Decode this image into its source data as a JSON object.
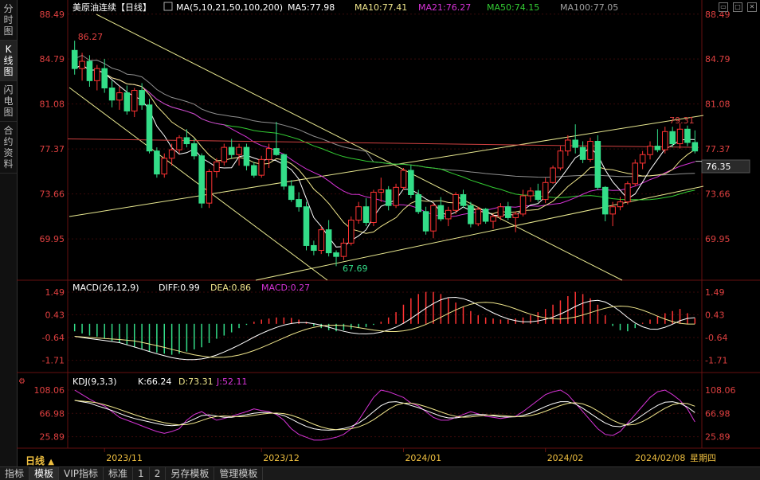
{
  "sidebar": {
    "tabs": [
      {
        "label": "分时图",
        "active": false
      },
      {
        "label": "K线图",
        "active": true
      },
      {
        "label": "闪电图",
        "active": false
      },
      {
        "label": "合约资料",
        "active": false
      }
    ]
  },
  "header": {
    "title": "美原油连续【日线】",
    "ma_params": "MA(5,10,21,50,100,200)",
    "ma_values": [
      {
        "label": "MA5:77.98",
        "color": "#ffffff"
      },
      {
        "label": "MA10:77.41",
        "color": "#f0e68c"
      },
      {
        "label": "MA21:76.27",
        "color": "#d633d6"
      },
      {
        "label": "MA50:74.15",
        "color": "#33cc33"
      },
      {
        "label": "MA100:77.05",
        "color": "#a0a0a0"
      }
    ]
  },
  "price_axis": {
    "ticks": [
      "88.49",
      "84.79",
      "81.08",
      "77.37",
      "73.66",
      "69.95"
    ],
    "current_price": "76.35"
  },
  "annotations": {
    "high_left": "86.27",
    "high_right": "79.31",
    "low": "67.69"
  },
  "macd": {
    "title": "MACD(26,12,9)",
    "diff": "DIFF:0.99",
    "dea": "DEA:0.86",
    "macd": "MACD:0.27",
    "ticks": [
      "1.49",
      "0.43",
      "-0.64",
      "-1.71"
    ]
  },
  "kdj": {
    "title": "KDJ(9,3,3)",
    "k": "K:66.24",
    "d": "D:73.31",
    "j": "J:52.11",
    "ticks": [
      "108.06",
      "66.98",
      "25.89"
    ]
  },
  "x_axis": {
    "labels": [
      "2023/11",
      "2023/12",
      "2024/01",
      "2024/02"
    ],
    "cursor_date": "2024/02/08",
    "cursor_weekday": "星期四"
  },
  "period_label": "日线",
  "bottom_tabs": [
    {
      "label": "指标",
      "selected": false
    },
    {
      "label": "模板",
      "selected": true
    },
    {
      "label": "VIP指标",
      "selected": false
    },
    {
      "label": "标准",
      "selected": false
    },
    {
      "label": "1",
      "selected": false
    },
    {
      "label": "2",
      "selected": false
    },
    {
      "label": "另存模板",
      "selected": false
    },
    {
      "label": "管理模板",
      "selected": false
    }
  ],
  "colors": {
    "up": "#ff3333",
    "down": "#33dd88",
    "grid": "#551111"
  },
  "chart_data": {
    "type": "candlestick",
    "title": "美原油连续【日线】",
    "ylim": [
      67.0,
      89.0
    ],
    "candles": [
      [
        85.5,
        86.3,
        83.5,
        84.0
      ],
      [
        84.0,
        85.3,
        83.0,
        84.6
      ],
      [
        84.6,
        85.1,
        82.5,
        83.0
      ],
      [
        83.0,
        84.3,
        82.2,
        84.0
      ],
      [
        84.0,
        84.8,
        82.0,
        82.4
      ],
      [
        82.4,
        83.0,
        80.8,
        81.4
      ],
      [
        81.4,
        82.5,
        80.6,
        82.0
      ],
      [
        82.0,
        82.6,
        80.2,
        80.5
      ],
      [
        80.5,
        82.4,
        80.0,
        82.2
      ],
      [
        82.2,
        82.8,
        80.6,
        81.0
      ],
      [
        81.0,
        81.5,
        77.0,
        77.2
      ],
      [
        77.2,
        77.5,
        75.0,
        75.3
      ],
      [
        75.3,
        77.0,
        75.0,
        76.6
      ],
      [
        76.6,
        77.8,
        76.0,
        77.3
      ],
      [
        77.3,
        78.5,
        77.0,
        78.3
      ],
      [
        78.3,
        79.0,
        77.5,
        77.8
      ],
      [
        77.8,
        78.2,
        76.5,
        76.8
      ],
      [
        76.8,
        77.0,
        72.5,
        72.9
      ],
      [
        72.9,
        75.7,
        72.5,
        75.5
      ],
      [
        75.5,
        76.6,
        75.0,
        76.3
      ],
      [
        76.3,
        77.8,
        76.0,
        77.5
      ],
      [
        77.5,
        78.2,
        76.6,
        76.9
      ],
      [
        76.9,
        77.8,
        76.0,
        77.5
      ],
      [
        77.5,
        77.8,
        75.6,
        76.0
      ],
      [
        76.0,
        76.3,
        75.0,
        75.2
      ],
      [
        75.2,
        76.8,
        75.0,
        76.5
      ],
      [
        76.5,
        77.8,
        75.8,
        77.4
      ],
      [
        77.4,
        79.6,
        76.8,
        76.9
      ],
      [
        76.9,
        77.0,
        74.0,
        74.3
      ],
      [
        74.3,
        74.8,
        73.0,
        73.2
      ],
      [
        73.2,
        73.8,
        72.2,
        72.6
      ],
      [
        72.6,
        73.0,
        69.0,
        69.4
      ],
      [
        69.4,
        69.8,
        68.6,
        69.0
      ],
      [
        69.0,
        71.0,
        68.7,
        70.7
      ],
      [
        70.7,
        71.5,
        68.5,
        68.8
      ],
      [
        68.8,
        69.0,
        67.7,
        68.5
      ],
      [
        68.5,
        70.0,
        68.2,
        69.6
      ],
      [
        69.6,
        71.8,
        69.4,
        71.5
      ],
      [
        71.5,
        73.0,
        71.2,
        72.6
      ],
      [
        72.6,
        73.3,
        71.0,
        71.3
      ],
      [
        71.3,
        74.0,
        71.0,
        73.8
      ],
      [
        73.8,
        75.0,
        73.0,
        74.0
      ],
      [
        74.0,
        74.3,
        72.3,
        72.7
      ],
      [
        72.7,
        74.5,
        72.5,
        74.2
      ],
      [
        74.2,
        75.8,
        74.0,
        75.6
      ],
      [
        75.6,
        76.0,
        73.3,
        73.6
      ],
      [
        73.6,
        74.0,
        72.0,
        72.2
      ],
      [
        72.2,
        72.6,
        70.3,
        70.6
      ],
      [
        70.6,
        72.9,
        70.0,
        72.7
      ],
      [
        72.7,
        73.4,
        71.4,
        71.6
      ],
      [
        71.6,
        72.6,
        71.0,
        72.3
      ],
      [
        72.3,
        73.8,
        72.0,
        73.6
      ],
      [
        73.6,
        74.0,
        72.5,
        72.7
      ],
      [
        72.7,
        73.0,
        70.9,
        71.2
      ],
      [
        71.2,
        72.6,
        71.0,
        72.4
      ],
      [
        72.4,
        72.5,
        71.2,
        71.4
      ],
      [
        71.4,
        72.0,
        70.8,
        71.8
      ],
      [
        71.8,
        72.9,
        71.5,
        72.6
      ],
      [
        72.6,
        73.0,
        71.5,
        71.7
      ],
      [
        71.7,
        72.2,
        70.5,
        72.0
      ],
      [
        72.0,
        74.0,
        71.8,
        73.5
      ],
      [
        73.5,
        74.2,
        73.0,
        73.9
      ],
      [
        73.9,
        74.5,
        73.0,
        73.2
      ],
      [
        73.2,
        75.0,
        72.9,
        74.6
      ],
      [
        74.6,
        76.0,
        74.5,
        75.8
      ],
      [
        75.8,
        77.6,
        75.6,
        77.2
      ],
      [
        77.2,
        78.5,
        76.8,
        78.1
      ],
      [
        78.1,
        79.4,
        77.0,
        77.5
      ],
      [
        77.5,
        78.0,
        76.2,
        76.5
      ],
      [
        76.5,
        78.3,
        76.3,
        78.0
      ],
      [
        78.0,
        78.5,
        74.0,
        74.2
      ],
      [
        74.2,
        74.3,
        71.4,
        72.0
      ],
      [
        72.0,
        73.0,
        71.0,
        72.6
      ],
      [
        72.6,
        73.4,
        72.3,
        73.0
      ],
      [
        73.0,
        74.7,
        72.8,
        74.5
      ],
      [
        74.5,
        76.5,
        74.3,
        76.2
      ],
      [
        76.2,
        77.2,
        75.7,
        76.9
      ],
      [
        76.9,
        78.0,
        76.5,
        77.6
      ],
      [
        77.6,
        79.0,
        77.1,
        77.3
      ],
      [
        77.3,
        79.2,
        77.0,
        78.8
      ],
      [
        78.8,
        79.2,
        77.5,
        77.8
      ],
      [
        77.8,
        79.5,
        77.4,
        79.0
      ],
      [
        79.0,
        79.3,
        77.6,
        77.9
      ],
      [
        77.9,
        78.9,
        77.0,
        77.2
      ]
    ],
    "macd_histogram": [
      -0.35,
      -0.45,
      -0.55,
      -0.6,
      -0.7,
      -0.8,
      -0.9,
      -1.0,
      -1.1,
      -1.2,
      -1.3,
      -1.35,
      -1.4,
      -1.45,
      -1.4,
      -1.3,
      -1.2,
      -1.1,
      -0.9,
      -0.7,
      -0.55,
      -0.4,
      -0.2,
      -0.05,
      0.1,
      0.2,
      0.25,
      0.3,
      0.3,
      0.28,
      0.2,
      0.1,
      -0.1,
      -0.2,
      -0.3,
      -0.35,
      -0.3,
      -0.25,
      -0.2,
      -0.15,
      -0.05,
      0.1,
      0.3,
      0.55,
      0.9,
      1.2,
      1.4,
      1.5,
      1.5,
      1.4,
      1.2,
      1.0,
      0.8,
      0.6,
      0.4,
      0.3,
      0.25,
      0.2,
      0.2,
      0.25,
      0.3,
      0.4,
      0.55,
      0.7,
      0.9,
      1.1,
      1.3,
      1.5,
      1.4,
      1.2,
      0.9,
      0.4,
      -0.1,
      -0.3,
      -0.35,
      -0.2,
      0.05,
      0.2,
      0.35,
      0.5,
      0.6,
      0.7,
      0.5,
      0.27
    ],
    "kdj_j": [
      108,
      100,
      92,
      85,
      80,
      70,
      60,
      55,
      50,
      45,
      40,
      35,
      32,
      35,
      40,
      55,
      65,
      70,
      62,
      55,
      58,
      62,
      66,
      70,
      75,
      72,
      70,
      65,
      55,
      40,
      30,
      25,
      20,
      20,
      22,
      25,
      30,
      40,
      55,
      75,
      95,
      108,
      105,
      100,
      95,
      85,
      80,
      70,
      60,
      55,
      55,
      60,
      65,
      70,
      66,
      62,
      60,
      58,
      60,
      62,
      70,
      80,
      90,
      100,
      105,
      108,
      100,
      85,
      70,
      55,
      40,
      30,
      28,
      35,
      50,
      65,
      80,
      95,
      105,
      108,
      100,
      90,
      75,
      52
    ]
  }
}
